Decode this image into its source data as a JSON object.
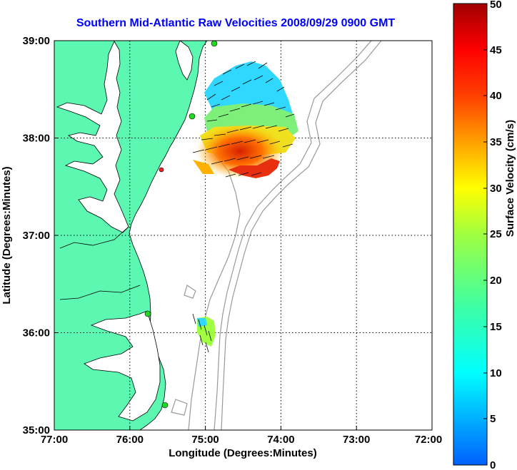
{
  "title": "Southern Mid-Atlantic Raw Velocities 2008/09/29 0900 GMT",
  "x_axis": {
    "label": "Longitude (Degrees:Minutes)",
    "ticks": [
      "77:00",
      "76:00",
      "75:00",
      "74:00",
      "73:00",
      "72:00"
    ]
  },
  "y_axis": {
    "label": "Latitude (Degrees:Minutes)",
    "ticks": [
      "39:00",
      "38:00",
      "37:00",
      "36:00",
      "35:00"
    ]
  },
  "colorbar": {
    "label": "Surface Velocity (cm/s)",
    "ticks": [
      "50",
      "45",
      "40",
      "35",
      "30",
      "25",
      "20",
      "15",
      "10",
      "5",
      "0"
    ],
    "range": [
      0,
      50
    ]
  },
  "map_extent": {
    "lon_range": [
      -77,
      -72
    ],
    "lat_range": [
      35,
      39
    ]
  },
  "colors": {
    "title": "#0000ff",
    "land": "#5cf7b0",
    "station": "#22d822",
    "station_alt": "#ff2222"
  },
  "stations": [
    {
      "lon": -74.87,
      "lat": 39.03,
      "color": "green"
    },
    {
      "lon": -75.16,
      "lat": 38.27,
      "color": "green"
    },
    {
      "lon": -75.52,
      "lat": 37.72,
      "color": "red"
    },
    {
      "lon": -75.8,
      "lat": 36.2,
      "color": "green"
    },
    {
      "lon": -75.52,
      "lat": 35.24,
      "color": "green"
    }
  ]
}
